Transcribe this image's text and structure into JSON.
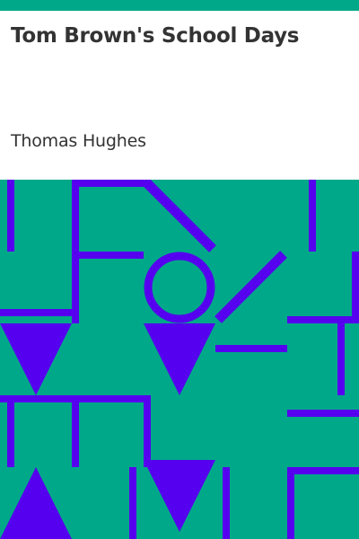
{
  "book": {
    "title": "Tom Brown's School Days",
    "author": "Thomas Hughes"
  },
  "colors": {
    "accent_bar": "#00a88a",
    "pattern_background": "#00a88a",
    "pattern_foreground": "#5500ee",
    "text": "#333333"
  },
  "cover_art": {
    "icon": "geometric-pattern-icon"
  }
}
